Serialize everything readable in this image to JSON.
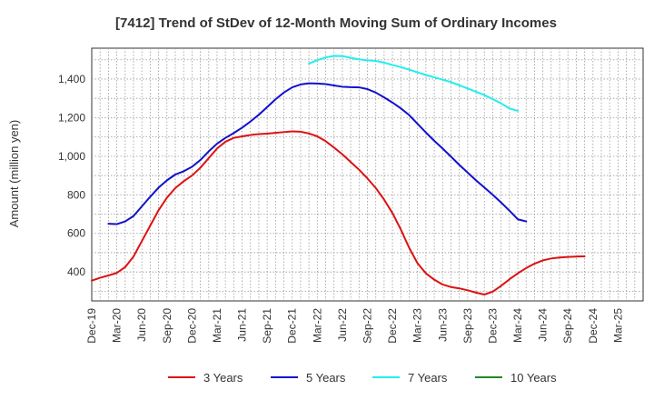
{
  "chart_data": {
    "type": "line",
    "title": "[7412]  Trend of StDev of 12-Month Moving Sum of Ordinary Incomes",
    "xlabel": "",
    "ylabel": "Amount (million yen)",
    "ylim": [
      250,
      1560
    ],
    "yticks": [
      400,
      600,
      800,
      1000,
      1200,
      1400
    ],
    "grid": true,
    "legend_position": "bottom",
    "x_tick_labels": [
      "Dec-19",
      "Mar-20",
      "Jun-20",
      "Sep-20",
      "Dec-20",
      "Mar-21",
      "Jun-21",
      "Sep-21",
      "Dec-21",
      "Mar-22",
      "Jun-22",
      "Sep-22",
      "Dec-22",
      "Mar-23",
      "Jun-23",
      "Sep-23",
      "Dec-23",
      "Mar-24",
      "Jun-24",
      "Sep-24",
      "Dec-24",
      "Mar-25"
    ],
    "series": [
      {
        "name": "3 Years",
        "color": "#dd1111",
        "points": [
          [
            0,
            355
          ],
          [
            1,
            370
          ],
          [
            2,
            382
          ],
          [
            3,
            395
          ],
          [
            4,
            425
          ],
          [
            5,
            480
          ],
          [
            6,
            560
          ],
          [
            7,
            640
          ],
          [
            8,
            720
          ],
          [
            9,
            785
          ],
          [
            10,
            835
          ],
          [
            11,
            870
          ],
          [
            12,
            900
          ],
          [
            13,
            940
          ],
          [
            14,
            990
          ],
          [
            15,
            1040
          ],
          [
            16,
            1075
          ],
          [
            17,
            1095
          ],
          [
            18,
            1103
          ],
          [
            19,
            1110
          ],
          [
            20,
            1115
          ],
          [
            21,
            1117
          ],
          [
            22,
            1121
          ],
          [
            23,
            1125
          ],
          [
            24,
            1129
          ],
          [
            25,
            1127
          ],
          [
            26,
            1118
          ],
          [
            27,
            1103
          ],
          [
            28,
            1078
          ],
          [
            29,
            1045
          ],
          [
            30,
            1010
          ],
          [
            31,
            970
          ],
          [
            32,
            930
          ],
          [
            33,
            885
          ],
          [
            34,
            835
          ],
          [
            35,
            775
          ],
          [
            36,
            705
          ],
          [
            37,
            620
          ],
          [
            38,
            525
          ],
          [
            39,
            445
          ],
          [
            40,
            393
          ],
          [
            41,
            360
          ],
          [
            42,
            335
          ],
          [
            43,
            322
          ],
          [
            44,
            315
          ],
          [
            45,
            305
          ],
          [
            46,
            293
          ],
          [
            47,
            283
          ],
          [
            48,
            298
          ],
          [
            49,
            328
          ],
          [
            50,
            362
          ],
          [
            51,
            393
          ],
          [
            52,
            420
          ],
          [
            53,
            443
          ],
          [
            54,
            460
          ],
          [
            55,
            470
          ],
          [
            56,
            475
          ],
          [
            57,
            478
          ],
          [
            58,
            480
          ],
          [
            59,
            481
          ]
        ]
      },
      {
        "name": "5 Years",
        "color": "#1111cc",
        "points": [
          [
            2,
            650
          ],
          [
            3,
            648
          ],
          [
            4,
            662
          ],
          [
            5,
            690
          ],
          [
            6,
            740
          ],
          [
            7,
            790
          ],
          [
            8,
            837
          ],
          [
            9,
            875
          ],
          [
            10,
            905
          ],
          [
            11,
            922
          ],
          [
            12,
            945
          ],
          [
            13,
            980
          ],
          [
            14,
            1025
          ],
          [
            15,
            1065
          ],
          [
            16,
            1095
          ],
          [
            17,
            1120
          ],
          [
            18,
            1148
          ],
          [
            19,
            1180
          ],
          [
            20,
            1215
          ],
          [
            21,
            1255
          ],
          [
            22,
            1295
          ],
          [
            23,
            1330
          ],
          [
            24,
            1357
          ],
          [
            25,
            1372
          ],
          [
            26,
            1378
          ],
          [
            27,
            1377
          ],
          [
            28,
            1374
          ],
          [
            29,
            1367
          ],
          [
            30,
            1360
          ],
          [
            31,
            1358
          ],
          [
            32,
            1357
          ],
          [
            33,
            1348
          ],
          [
            34,
            1330
          ],
          [
            35,
            1305
          ],
          [
            36,
            1278
          ],
          [
            37,
            1248
          ],
          [
            38,
            1213
          ],
          [
            39,
            1168
          ],
          [
            40,
            1123
          ],
          [
            41,
            1080
          ],
          [
            42,
            1040
          ],
          [
            43,
            998
          ],
          [
            44,
            955
          ],
          [
            45,
            915
          ],
          [
            46,
            875
          ],
          [
            47,
            838
          ],
          [
            48,
            800
          ],
          [
            49,
            760
          ],
          [
            50,
            718
          ],
          [
            51,
            673
          ],
          [
            52,
            662
          ]
        ]
      },
      {
        "name": "7 Years",
        "color": "#22eeee",
        "points": [
          [
            26,
            1480
          ],
          [
            27,
            1498
          ],
          [
            28,
            1512
          ],
          [
            29,
            1520
          ],
          [
            30,
            1519
          ],
          [
            31,
            1510
          ],
          [
            32,
            1502
          ],
          [
            33,
            1497
          ],
          [
            34,
            1494
          ],
          [
            35,
            1485
          ],
          [
            36,
            1473
          ],
          [
            37,
            1462
          ],
          [
            38,
            1449
          ],
          [
            39,
            1435
          ],
          [
            40,
            1421
          ],
          [
            41,
            1409
          ],
          [
            42,
            1397
          ],
          [
            43,
            1384
          ],
          [
            44,
            1368
          ],
          [
            45,
            1351
          ],
          [
            46,
            1334
          ],
          [
            47,
            1317
          ],
          [
            48,
            1296
          ],
          [
            49,
            1274
          ],
          [
            50,
            1248
          ],
          [
            51,
            1235
          ]
        ]
      },
      {
        "name": "10 Years",
        "color": "#228822",
        "points": []
      }
    ]
  }
}
